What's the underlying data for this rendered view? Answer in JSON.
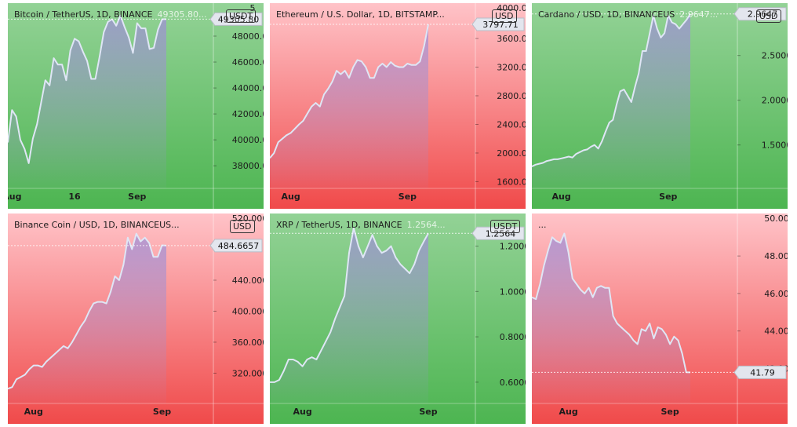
{
  "colors": {
    "green_top": "#93d296",
    "green_bottom": "#4db551",
    "red_top": "#ffc3c8",
    "red_bottom": "#f04a4a",
    "line": "#dfe6f5",
    "fill": "#9f8fd6"
  },
  "chart_data": [
    {
      "type": "area",
      "theme": "green",
      "title": "Bitcoin / TetherUS, 1D, BINANCE",
      "last_label": "49305.80...",
      "currency": "USDT",
      "price_badge": "49305.80",
      "top_clip": "5",
      "yticks": [
        "48000.00",
        "46000.00",
        "44000.00",
        "42000.00",
        "40000.00",
        "38000.00"
      ],
      "ytick_values": [
        48000,
        46000,
        44000,
        42000,
        40000,
        38000
      ],
      "ylim": [
        36500,
        50300
      ],
      "xticks": [
        {
          "label": "Aug",
          "i": 1
        },
        {
          "label": "16",
          "i": 16
        },
        {
          "label": "Sep",
          "i": 31
        }
      ],
      "values": [
        39800,
        42300,
        41800,
        40000,
        39300,
        38200,
        40100,
        41200,
        42900,
        44600,
        44200,
        46300,
        45800,
        45800,
        44600,
        46900,
        47800,
        47600,
        46800,
        46100,
        44700,
        44700,
        46400,
        48300,
        49100,
        49300,
        48800,
        49600,
        48700,
        47900,
        46700,
        49000,
        48600,
        48600,
        47000,
        47100,
        48500,
        49300,
        49305.8
      ]
    },
    {
      "type": "area",
      "theme": "red",
      "title": "Ethereum / U.S. Dollar, 1D, BITSTAMP...",
      "last_label": "",
      "currency": "USD",
      "price_badge": "3797.71",
      "top_clip": "4000.00",
      "yticks": [
        "3600.00",
        "3200.00",
        "2800.00",
        "2400.00",
        "2000.00",
        "1600.00"
      ],
      "ytick_values": [
        3600,
        3200,
        2800,
        2400,
        2000,
        1600
      ],
      "ylim": [
        1550,
        4050
      ],
      "xticks": [
        {
          "label": "Aug",
          "i": 5
        },
        {
          "label": "Sep",
          "i": 33
        }
      ],
      "values": [
        1930,
        2000,
        2150,
        2200,
        2250,
        2280,
        2340,
        2400,
        2450,
        2550,
        2650,
        2700,
        2650,
        2820,
        2900,
        3000,
        3150,
        3100,
        3150,
        3050,
        3200,
        3300,
        3280,
        3200,
        3050,
        3050,
        3200,
        3250,
        3200,
        3270,
        3220,
        3200,
        3200,
        3250,
        3230,
        3230,
        3280,
        3500,
        3797.71
      ]
    },
    {
      "type": "area",
      "theme": "green",
      "title": "Cardano / USD, 1D, BINANCEUS",
      "last_label": "2.9647...",
      "currency": "USD",
      "price_badge": "2.9647",
      "top_clip": "",
      "yticks": [
        "2.5000",
        "2.0000",
        "1.5000"
      ],
      "ytick_values": [
        2.5,
        2.0,
        1.5
      ],
      "ylim": [
        1.05,
        3.05
      ],
      "xticks": [
        {
          "label": "Aug",
          "i": 8
        },
        {
          "label": "Sep",
          "i": 37
        }
      ],
      "values": [
        1.26,
        1.28,
        1.29,
        1.3,
        1.32,
        1.33,
        1.34,
        1.34,
        1.35,
        1.36,
        1.37,
        1.36,
        1.4,
        1.42,
        1.44,
        1.45,
        1.48,
        1.5,
        1.46,
        1.54,
        1.65,
        1.75,
        1.78,
        1.95,
        2.1,
        2.12,
        2.05,
        1.98,
        2.15,
        2.3,
        2.55,
        2.55,
        2.75,
        2.95,
        2.8,
        2.7,
        2.75,
        2.95,
        2.87,
        2.85,
        2.8,
        2.85,
        2.9,
        2.9647
      ]
    },
    {
      "type": "area",
      "theme": "red",
      "title": "Binance Coin / USD, 1D, BINANCEUS...",
      "last_label": "",
      "currency": "USD",
      "price_badge": "484.6657",
      "top_clip": "520.0000",
      "yticks": [
        "440.0000",
        "400.0000",
        "360.0000",
        "320.0000"
      ],
      "ytick_values": [
        440,
        400,
        360,
        320
      ],
      "ylim": [
        285,
        522
      ],
      "xticks": [
        {
          "label": "Aug",
          "i": 6
        },
        {
          "label": "Sep",
          "i": 36
        }
      ],
      "values": [
        300,
        302,
        312,
        315,
        318,
        325,
        330,
        330,
        328,
        335,
        340,
        345,
        350,
        355,
        352,
        360,
        370,
        380,
        388,
        400,
        410,
        412,
        412,
        410,
        425,
        445,
        440,
        460,
        495,
        480,
        500,
        490,
        495,
        488,
        470,
        470,
        485,
        484.6657
      ]
    },
    {
      "type": "area",
      "theme": "green",
      "title": "XRP / TetherUS, 1D, BINANCE",
      "last_label": "1.2564...",
      "currency": "USDT",
      "price_badge": "1.2564",
      "top_clip": "",
      "yticks": [
        "1.2000",
        "1.0000",
        "0.8000",
        "0.6000"
      ],
      "ytick_values": [
        1.2,
        1.0,
        0.8,
        0.6
      ],
      "ylim": [
        0.52,
        1.33
      ],
      "xticks": [
        {
          "label": "Aug",
          "i": 7
        },
        {
          "label": "Sep",
          "i": 34
        }
      ],
      "values": [
        0.6,
        0.6,
        0.61,
        0.65,
        0.7,
        0.7,
        0.69,
        0.67,
        0.7,
        0.71,
        0.7,
        0.74,
        0.78,
        0.82,
        0.88,
        0.93,
        0.98,
        1.17,
        1.28,
        1.2,
        1.15,
        1.2,
        1.25,
        1.2,
        1.17,
        1.18,
        1.2,
        1.15,
        1.12,
        1.1,
        1.08,
        1.12,
        1.18,
        1.22,
        1.2564
      ]
    },
    {
      "type": "area",
      "theme": "red",
      "title": "...",
      "last_label": "",
      "currency": "",
      "price_badge": "41.79",
      "top_clip": "50.00",
      "yticks": [
        "48.00",
        "46.00",
        "44.00",
        "42.00"
      ],
      "ytick_values": [
        48,
        46,
        44,
        42
      ],
      "ylim": [
        40.3,
        50.1
      ],
      "xticks": [
        {
          "label": "Aug",
          "i": 9
        },
        {
          "label": "Sep",
          "i": 34
        }
      ],
      "values": [
        45.8,
        45.7,
        46.5,
        47.5,
        48.3,
        49.0,
        48.8,
        48.7,
        49.2,
        48.2,
        46.8,
        46.5,
        46.2,
        46.0,
        46.3,
        45.8,
        46.3,
        46.4,
        46.3,
        46.3,
        44.8,
        44.4,
        44.2,
        44.0,
        43.8,
        43.5,
        43.3,
        44.1,
        44.0,
        44.4,
        43.6,
        44.2,
        44.1,
        43.8,
        43.3,
        43.7,
        43.5,
        42.8,
        41.8,
        41.79
      ]
    }
  ]
}
